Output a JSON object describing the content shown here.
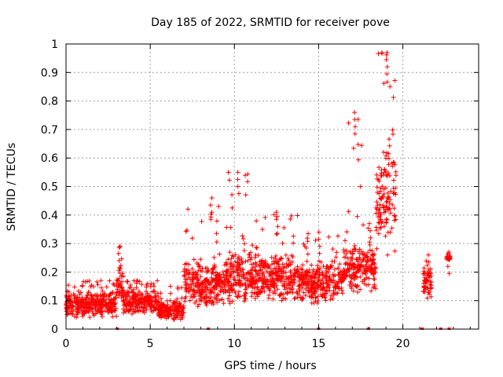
{
  "chart_data": {
    "type": "scatter",
    "title": "Day 185 of 2022, SRMTID for receiver pove",
    "xlabel": "GPS time / hours",
    "ylabel": "SRMTID / TECUs",
    "xlim": [
      0,
      24.5
    ],
    "ylim": [
      0,
      1
    ],
    "xticks": [
      "0",
      "5",
      "10",
      "15",
      "20"
    ],
    "yticks": [
      "0",
      "0.1",
      "0.2",
      "0.3",
      "0.4",
      "0.5",
      "0.6",
      "0.7",
      "0.8",
      "0.9",
      "1"
    ],
    "grid": true,
    "marker": "plus",
    "color": "#ff0000",
    "series": [
      {
        "name": "SRMTID",
        "envelope_description": "dense cloud of samples; approximate per-time ranges",
        "bands": [
          {
            "t_start": 0.0,
            "t_end": 3.0,
            "low": 0.04,
            "high": 0.14,
            "peak": 0.17
          },
          {
            "t_start": 3.0,
            "t_end": 3.4,
            "low": 0.08,
            "high": 0.22,
            "peak": 0.29
          },
          {
            "t_start": 3.4,
            "t_end": 5.5,
            "low": 0.05,
            "high": 0.14,
            "peak": 0.17
          },
          {
            "t_start": 5.5,
            "t_end": 7.0,
            "low": 0.03,
            "high": 0.1,
            "peak": 0.15
          },
          {
            "t_start": 7.0,
            "t_end": 9.5,
            "low": 0.07,
            "high": 0.24,
            "peak": 0.46
          },
          {
            "t_start": 9.5,
            "t_end": 11.0,
            "low": 0.08,
            "high": 0.28,
            "peak": 0.55
          },
          {
            "t_start": 11.0,
            "t_end": 14.0,
            "low": 0.09,
            "high": 0.27,
            "peak": 0.41
          },
          {
            "t_start": 14.0,
            "t_end": 16.5,
            "low": 0.08,
            "high": 0.25,
            "peak": 0.34
          },
          {
            "t_start": 16.5,
            "t_end": 17.6,
            "low": 0.12,
            "high": 0.32,
            "peak": 0.76
          },
          {
            "t_start": 17.6,
            "t_end": 18.4,
            "low": 0.13,
            "high": 0.3,
            "peak": 0.37
          },
          {
            "t_start": 18.4,
            "t_end": 19.6,
            "low": 0.25,
            "high": 0.66,
            "peak": 0.97
          },
          {
            "t_start": 21.2,
            "t_end": 21.7,
            "low": 0.1,
            "high": 0.23,
            "peak": 0.26
          },
          {
            "t_start": 22.6,
            "t_end": 22.8,
            "low": 0.24,
            "high": 0.26,
            "peak": 0.27
          }
        ],
        "zero_points_hours": [
          3.05,
          8.45,
          15.0,
          17.95,
          21.15,
          22.25,
          22.75
        ]
      }
    ]
  }
}
